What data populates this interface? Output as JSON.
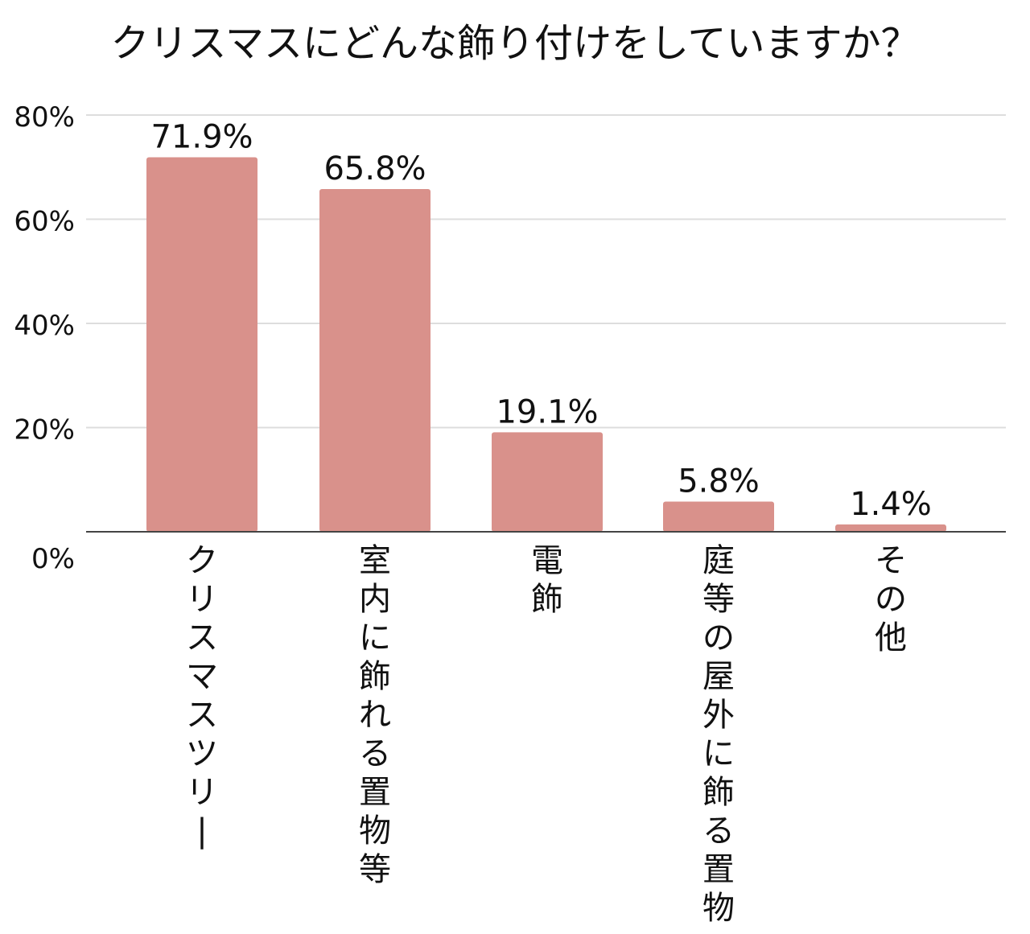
{
  "chart_data": {
    "type": "bar",
    "title": "クリスマスにどんな飾り付けをしていますか？",
    "xlabel": "",
    "ylabel": "",
    "categories": [
      "クリスマスツリー",
      "室内に飾れる置物等",
      "電飾",
      "庭等の屋外に飾る置物",
      "その他"
    ],
    "values": [
      71.9,
      65.8,
      19.1,
      5.8,
      1.4
    ],
    "data_labels": [
      "71.9%",
      "65.8%",
      "19.1%",
      "5.8%",
      "1.4%"
    ],
    "ylim": [
      0,
      80
    ],
    "yticks": [
      0,
      20,
      40,
      60,
      80
    ],
    "ytick_labels": [
      "0%",
      "20%",
      "40%",
      "60%",
      "80%"
    ],
    "grid": true,
    "legend": "none",
    "bar_color": "#d9918b",
    "grid_color": "#dddddd",
    "axis_color": "#444444",
    "text_color": "#111111"
  }
}
